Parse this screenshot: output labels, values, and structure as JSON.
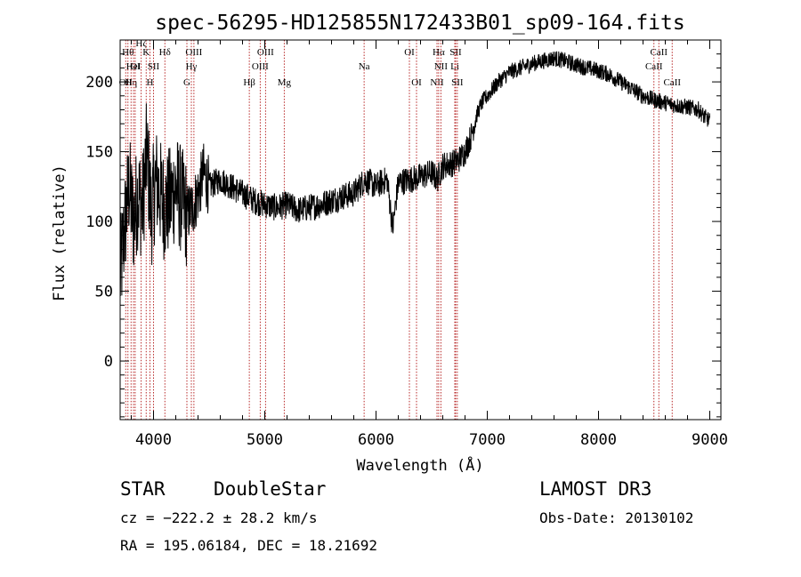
{
  "chart_data": {
    "type": "line",
    "title": "spec-56295-HD125855N172433B01_sp09-164.fits",
    "xlabel": "Wavelength (Å)",
    "ylabel": "Flux (relative)",
    "xlim": [
      3700,
      9100
    ],
    "ylim": [
      -42,
      230
    ],
    "xticks": [
      4000,
      5000,
      6000,
      7000,
      8000,
      9000
    ],
    "yticks": [
      0,
      50,
      100,
      150,
      200
    ],
    "x_minor_step": 200,
    "y_minor_step": 10,
    "grid": false,
    "legend": "none",
    "series": [
      {
        "color": "#000000",
        "x": [
          3700,
          3740,
          3780,
          3820,
          3860,
          3900,
          3940,
          3980,
          4020,
          4060,
          4100,
          4150,
          4200,
          4250,
          4300,
          4350,
          4400,
          4450,
          4500,
          4600,
          4700,
          4800,
          4900,
          5000,
          5100,
          5200,
          5300,
          5400,
          5500,
          5600,
          5700,
          5800,
          5900,
          6000,
          6050,
          6100,
          6150,
          6200,
          6300,
          6400,
          6500,
          6550,
          6600,
          6700,
          6750,
          6800,
          6850,
          6900,
          6950,
          7000,
          7100,
          7200,
          7300,
          7400,
          7500,
          7600,
          7700,
          7800,
          7900,
          8000,
          8100,
          8200,
          8300,
          8400,
          8500,
          8600,
          8700,
          8800,
          8900,
          8950,
          9000
        ],
        "y": [
          60,
          95,
          125,
          100,
          120,
          110,
          150,
          105,
          130,
          120,
          110,
          115,
          125,
          115,
          105,
          110,
          120,
          135,
          125,
          130,
          125,
          120,
          115,
          112,
          110,
          112,
          108,
          110,
          112,
          115,
          118,
          120,
          130,
          125,
          128,
          130,
          95,
          128,
          130,
          132,
          135,
          130,
          140,
          142,
          145,
          150,
          160,
          175,
          185,
          190,
          200,
          207,
          210,
          213,
          215,
          217,
          215,
          212,
          210,
          208,
          205,
          200,
          195,
          190,
          187,
          185,
          183,
          182,
          180,
          175,
          172
        ]
      }
    ],
    "lines": [
      {
        "x": 3750,
        "label": "OII",
        "row": 3
      },
      {
        "x": 3770,
        "label": "Hθ",
        "row": 1
      },
      {
        "x": 3798,
        "label": "Hη",
        "row": 3
      },
      {
        "x": 3820,
        "label": "HeI",
        "row": 2
      },
      {
        "x": 3835,
        "label": "OI",
        "row": 2
      },
      {
        "x": 3889,
        "label": "Hζ",
        "row": 0
      },
      {
        "x": 3934,
        "label": "K",
        "row": 1
      },
      {
        "x": 3968,
        "label": "H",
        "row": 3
      },
      {
        "x": 4000,
        "label": "SII",
        "row": 2
      },
      {
        "x": 4102,
        "label": "Hδ",
        "row": 1
      },
      {
        "x": 4300,
        "label": "G",
        "row": 3
      },
      {
        "x": 4340,
        "label": "Hγ",
        "row": 2
      },
      {
        "x": 4363,
        "label": "OIII",
        "row": 1
      },
      {
        "x": 4861,
        "label": "Hβ",
        "row": 3
      },
      {
        "x": 4959,
        "label": "OIII",
        "row": 2
      },
      {
        "x": 5007,
        "label": "OIII",
        "row": 1
      },
      {
        "x": 5175,
        "label": "Mg",
        "row": 3
      },
      {
        "x": 5893,
        "label": "Na",
        "row": 2
      },
      {
        "x": 6300,
        "label": "OI",
        "row": 1
      },
      {
        "x": 6364,
        "label": "OI",
        "row": 3
      },
      {
        "x": 6548,
        "label": "NII",
        "row": 3
      },
      {
        "x": 6563,
        "label": "Hα",
        "row": 1
      },
      {
        "x": 6583,
        "label": "NII",
        "row": 2
      },
      {
        "x": 6708,
        "label": "Li",
        "row": 2
      },
      {
        "x": 6716,
        "label": "SII",
        "row": 1
      },
      {
        "x": 6731,
        "label": "SII",
        "row": 3
      },
      {
        "x": 8498,
        "label": "CaII",
        "row": 2
      },
      {
        "x": 8542,
        "label": "CaII",
        "row": 1
      },
      {
        "x": 8662,
        "label": "CaII",
        "row": 3
      }
    ]
  },
  "info": {
    "object_class": "STAR",
    "subclass": "DoubleStar",
    "survey": "LAMOST DR3",
    "redshift": "cz = −222.2 ± 28.2 km/s",
    "obs_date": "Obs-Date: 20130102",
    "coords": "RA = 195.06184, DEC =  18.21692"
  }
}
